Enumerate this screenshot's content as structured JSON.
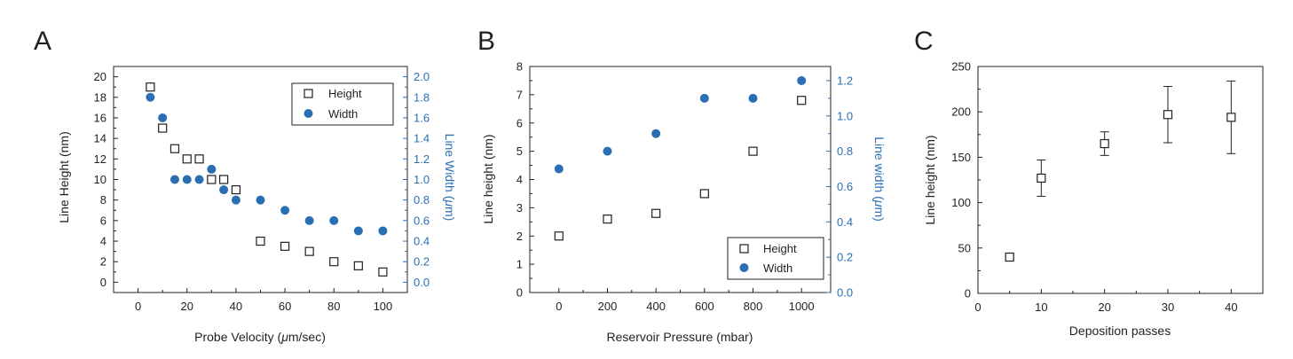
{
  "colors": {
    "left_axis": "#231f20",
    "right_axis": "#2a6fb4",
    "width_marker": "#2a6fb4"
  },
  "chart_data": [
    {
      "panel_label": "A",
      "type": "scatter",
      "xlabel_parts": [
        "Probe Velocity (",
        "μ",
        "m/sec)"
      ],
      "ylabel": "Line Height (nm)",
      "y2label_parts": [
        "Line Width (",
        "μ",
        "m)"
      ],
      "xlim": [
        -10,
        110
      ],
      "ylim": [
        -1,
        21
      ],
      "y2lim": [
        -0.1,
        2.1
      ],
      "xticks": [
        0,
        20,
        40,
        60,
        80,
        100
      ],
      "yticks": [
        0,
        2,
        4,
        6,
        8,
        10,
        12,
        14,
        16,
        18,
        20
      ],
      "y2ticks": [
        "0.0",
        "0.2",
        "0.4",
        "0.6",
        "0.8",
        "1.0",
        "1.2",
        "1.4",
        "1.6",
        "1.8",
        "2.0"
      ],
      "legend": [
        "Height",
        "Width"
      ],
      "legend_position": "top-right",
      "series": [
        {
          "name": "Height",
          "marker": "open-square",
          "axis": "left",
          "x": [
            5,
            10,
            15,
            20,
            25,
            30,
            35,
            40,
            50,
            60,
            70,
            80,
            90,
            100
          ],
          "y": [
            19,
            15,
            13,
            12,
            12,
            10,
            10,
            9,
            4,
            3.5,
            3,
            2,
            1.6,
            1
          ]
        },
        {
          "name": "Width",
          "marker": "filled-circle",
          "axis": "right",
          "x": [
            5,
            10,
            15,
            20,
            25,
            30,
            35,
            40,
            50,
            60,
            70,
            80,
            90,
            100
          ],
          "y": [
            1.8,
            1.6,
            1.0,
            1.0,
            1.0,
            1.1,
            0.9,
            0.8,
            0.8,
            0.7,
            0.6,
            0.6,
            0.5,
            0.5
          ]
        }
      ]
    },
    {
      "panel_label": "B",
      "type": "scatter",
      "xlabel_parts": [
        "Reservoir Pressure (mbar)"
      ],
      "ylabel": "Line height (nm)",
      "y2label_parts": [
        "Line width (",
        "μ",
        "m)"
      ],
      "xlim": [
        -120,
        1120
      ],
      "ylim": [
        0,
        8
      ],
      "y2lim": [
        0,
        1.28
      ],
      "xticks": [
        0,
        200,
        400,
        600,
        800,
        1000
      ],
      "yticks": [
        0,
        1,
        2,
        3,
        4,
        5,
        6,
        7,
        8
      ],
      "y2ticks": [
        "0.0",
        "0.2",
        "0.4",
        "0.6",
        "0.8",
        "1.0",
        "1.2"
      ],
      "legend": [
        "Height",
        "Width"
      ],
      "legend_position": "bottom-right",
      "series": [
        {
          "name": "Height",
          "marker": "open-square",
          "axis": "left",
          "x": [
            0,
            200,
            400,
            600,
            800,
            1000
          ],
          "y": [
            2.0,
            2.6,
            2.8,
            3.5,
            5.0,
            6.8
          ]
        },
        {
          "name": "Width",
          "marker": "filled-circle",
          "axis": "right",
          "x": [
            0,
            200,
            400,
            600,
            800,
            1000
          ],
          "y": [
            0.7,
            0.8,
            0.9,
            1.1,
            1.1,
            1.2
          ]
        }
      ]
    },
    {
      "panel_label": "C",
      "type": "scatter",
      "xlabel_parts": [
        "Deposition passes"
      ],
      "ylabel": "Line height (nm)",
      "xlim": [
        0,
        45
      ],
      "ylim": [
        0,
        250
      ],
      "xticks": [
        0,
        10,
        20,
        30,
        40
      ],
      "yticks": [
        0,
        50,
        100,
        150,
        200,
        250
      ],
      "series": [
        {
          "name": "Height",
          "marker": "open-square",
          "axis": "left",
          "x": [
            5,
            10,
            20,
            30,
            40
          ],
          "y": [
            40,
            127,
            165,
            197,
            194
          ],
          "error": [
            4,
            20,
            13,
            31,
            40
          ]
        }
      ]
    }
  ]
}
